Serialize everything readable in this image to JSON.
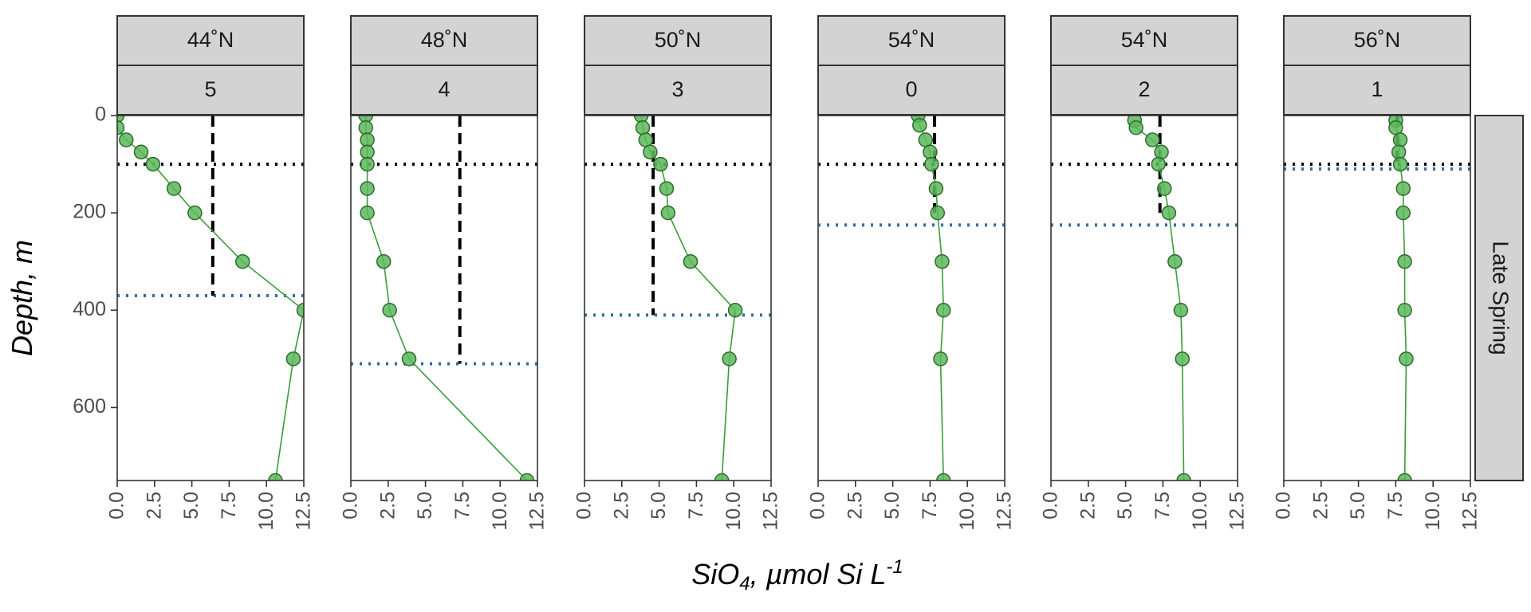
{
  "chart_data": {
    "type": "line",
    "facet_row_label": "Late Spring",
    "xlabel": {
      "prefix": "SiO",
      "sub": "4",
      "middle": ", µmol Si L",
      "sup": "-1"
    },
    "ylabel": "Depth, m",
    "xlim": [
      0,
      12.5
    ],
    "ylim": [
      0,
      750
    ],
    "y_reversed": true,
    "x_ticks": [
      "0.0",
      "2.5",
      "5.0",
      "7.5",
      "10.0",
      "12.5"
    ],
    "y_ticks": [
      "0",
      "200",
      "400",
      "600"
    ],
    "colors": {
      "points": "#5cb85c",
      "point_stroke": "#2e6b2e",
      "line": "#3a9c3a",
      "mixed_layer_line": "#000000",
      "deep_line": "#2f6ea6",
      "mean_line": "#000000",
      "strip_fill": "#d3d3d3"
    },
    "panels": [
      {
        "latitude": "44˚N",
        "station": "5",
        "mixed_layer_depth": 100,
        "deep_reference_depth": 370,
        "mean_line": {
          "x": 6.4,
          "depth_to": 370
        },
        "points": [
          [
            0,
            0
          ],
          [
            0,
            25
          ],
          [
            0.6,
            50
          ],
          [
            1.6,
            75
          ],
          [
            2.4,
            100
          ],
          [
            3.8,
            150
          ],
          [
            5.2,
            200
          ],
          [
            8.4,
            300
          ],
          [
            12.5,
            400
          ],
          [
            11.8,
            500
          ],
          [
            10.6,
            750
          ]
        ]
      },
      {
        "latitude": "48˚N",
        "station": "4",
        "mixed_layer_depth": 100,
        "deep_reference_depth": 510,
        "mean_line": {
          "x": 7.3,
          "depth_to": 510
        },
        "points": [
          [
            1.0,
            0
          ],
          [
            1.0,
            25
          ],
          [
            1.1,
            50
          ],
          [
            1.1,
            75
          ],
          [
            1.1,
            100
          ],
          [
            1.1,
            150
          ],
          [
            1.1,
            200
          ],
          [
            2.2,
            300
          ],
          [
            2.6,
            400
          ],
          [
            3.9,
            500
          ],
          [
            11.8,
            750
          ]
        ]
      },
      {
        "latitude": "50˚N",
        "station": "3",
        "mixed_layer_depth": 100,
        "deep_reference_depth": 410,
        "mean_line": {
          "x": 4.6,
          "depth_to": 410
        },
        "points": [
          [
            3.8,
            0
          ],
          [
            3.9,
            25
          ],
          [
            4.1,
            50
          ],
          [
            4.4,
            75
          ],
          [
            5.1,
            100
          ],
          [
            5.5,
            150
          ],
          [
            5.6,
            200
          ],
          [
            7.1,
            300
          ],
          [
            10.1,
            400
          ],
          [
            9.7,
            500
          ],
          [
            9.2,
            750
          ]
        ]
      },
      {
        "latitude": "54˚N",
        "station": "0",
        "mixed_layer_depth": 100,
        "deep_reference_depth": 225,
        "mean_line": {
          "x": 7.8,
          "depth_to": 200
        },
        "points": [
          [
            6.7,
            0
          ],
          [
            6.8,
            20
          ],
          [
            7.2,
            50
          ],
          [
            7.5,
            75
          ],
          [
            7.6,
            100
          ],
          [
            7.9,
            150
          ],
          [
            8.0,
            200
          ],
          [
            8.3,
            300
          ],
          [
            8.4,
            400
          ],
          [
            8.2,
            500
          ],
          [
            8.4,
            750
          ]
        ]
      },
      {
        "latitude": "54˚N",
        "station": "2",
        "mixed_layer_depth": 100,
        "deep_reference_depth": 225,
        "mean_line": {
          "x": 7.3,
          "depth_to": 200
        },
        "points": [
          [
            5.6,
            10
          ],
          [
            5.7,
            25
          ],
          [
            6.8,
            50
          ],
          [
            7.4,
            75
          ],
          [
            7.2,
            100
          ],
          [
            7.6,
            150
          ],
          [
            7.9,
            200
          ],
          [
            8.3,
            300
          ],
          [
            8.7,
            400
          ],
          [
            8.8,
            500
          ],
          [
            8.9,
            750
          ]
        ]
      },
      {
        "latitude": "56˚N",
        "station": "1",
        "mixed_layer_depth": 100,
        "deep_reference_depth": 110,
        "mean_line": {
          "x": 7.6,
          "depth_to": 100
        },
        "points": [
          [
            7.5,
            10
          ],
          [
            7.5,
            25
          ],
          [
            7.8,
            50
          ],
          [
            7.7,
            75
          ],
          [
            7.8,
            100
          ],
          [
            8.0,
            150
          ],
          [
            8.0,
            200
          ],
          [
            8.1,
            300
          ],
          [
            8.1,
            400
          ],
          [
            8.2,
            500
          ],
          [
            8.1,
            750
          ]
        ]
      }
    ]
  }
}
